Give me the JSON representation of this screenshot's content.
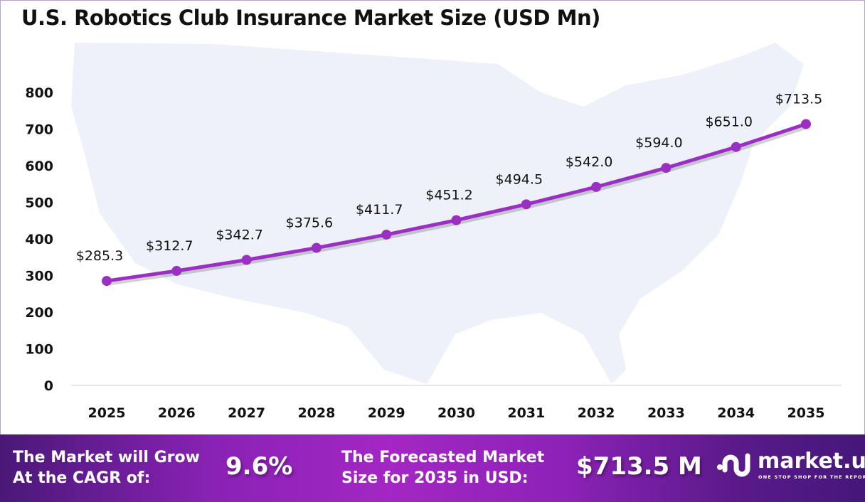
{
  "chart_data": {
    "type": "line",
    "title": "U.S. Robotics Club Insurance Market Size (USD Mn)",
    "categories": [
      "2025",
      "2026",
      "2027",
      "2028",
      "2029",
      "2030",
      "2031",
      "2032",
      "2033",
      "2034",
      "2035"
    ],
    "values": [
      285.3,
      312.7,
      342.7,
      375.6,
      411.7,
      451.2,
      494.5,
      542.0,
      594.0,
      651.0,
      713.5
    ],
    "data_labels": [
      "$285.3",
      "$312.7",
      "$342.7",
      "$375.6",
      "$411.7",
      "$451.2",
      "$494.5",
      "$542.0",
      "$594.0",
      "$651.0",
      "$713.5"
    ],
    "yticks": [
      "0",
      "100",
      "200",
      "300",
      "400",
      "500",
      "600",
      "700",
      "800"
    ],
    "ylim": [
      0,
      800
    ],
    "grid": false,
    "line_color": "#9b2fc4",
    "xlabel": "",
    "ylabel": ""
  },
  "footer": {
    "cagr_text_1": "The Market will Grow",
    "cagr_text_2": "At the CAGR of:",
    "cagr_value": "9.6%",
    "forecast_text_1": "The Forecasted Market",
    "forecast_text_2": "Size for 2035 in USD:",
    "forecast_value": "$713.5 M",
    "logo_name": "market.us",
    "logo_tagline": "ONE STOP SHOP FOR THE REPORTS"
  }
}
